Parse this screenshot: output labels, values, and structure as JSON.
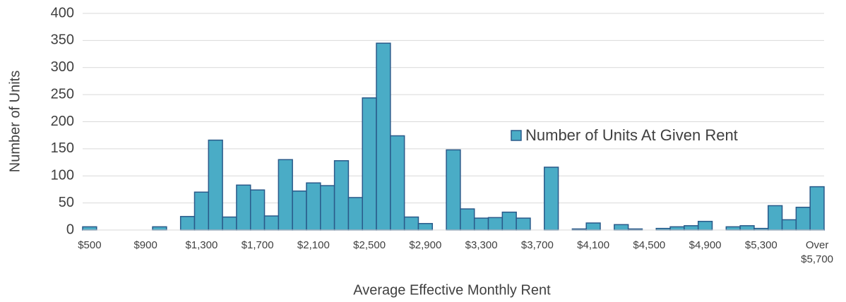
{
  "chart_data": {
    "type": "bar",
    "x_label": "Average Effective Monthly Rent",
    "y_label": "Number of Units",
    "categories": [
      "$500",
      null,
      null,
      null,
      "$900",
      null,
      null,
      null,
      "$1,300",
      null,
      null,
      null,
      "$1,700",
      null,
      null,
      null,
      "$2,100",
      null,
      null,
      null,
      "$2,500",
      null,
      null,
      null,
      "$2,900",
      null,
      null,
      null,
      "$3,300",
      null,
      null,
      null,
      "$3,700",
      null,
      null,
      null,
      "$4,100",
      null,
      null,
      null,
      "$4,500",
      null,
      null,
      null,
      "$4,900",
      null,
      null,
      null,
      "$5,300",
      null,
      null,
      null,
      "Over $5,700"
    ],
    "series": [
      {
        "name": "Number of Units At Given Rent",
        "color": "#4aacc6",
        "edge_color": "#2a5a8a",
        "values": [
          6,
          0,
          0,
          0,
          0,
          6,
          0,
          25,
          70,
          166,
          24,
          83,
          74,
          26,
          130,
          72,
          87,
          82,
          128,
          60,
          244,
          345,
          174,
          24,
          12,
          0,
          148,
          39,
          22,
          23,
          33,
          22,
          0,
          116,
          0,
          2,
          13,
          0,
          10,
          2,
          0,
          3,
          6,
          8,
          16,
          0,
          6,
          8,
          3,
          45,
          19,
          42,
          80
        ]
      }
    ],
    "ylim": [
      0,
      400
    ],
    "yticks": [
      0,
      50,
      100,
      150,
      200,
      250,
      300,
      350,
      400
    ],
    "grid": true,
    "legend": "right"
  }
}
